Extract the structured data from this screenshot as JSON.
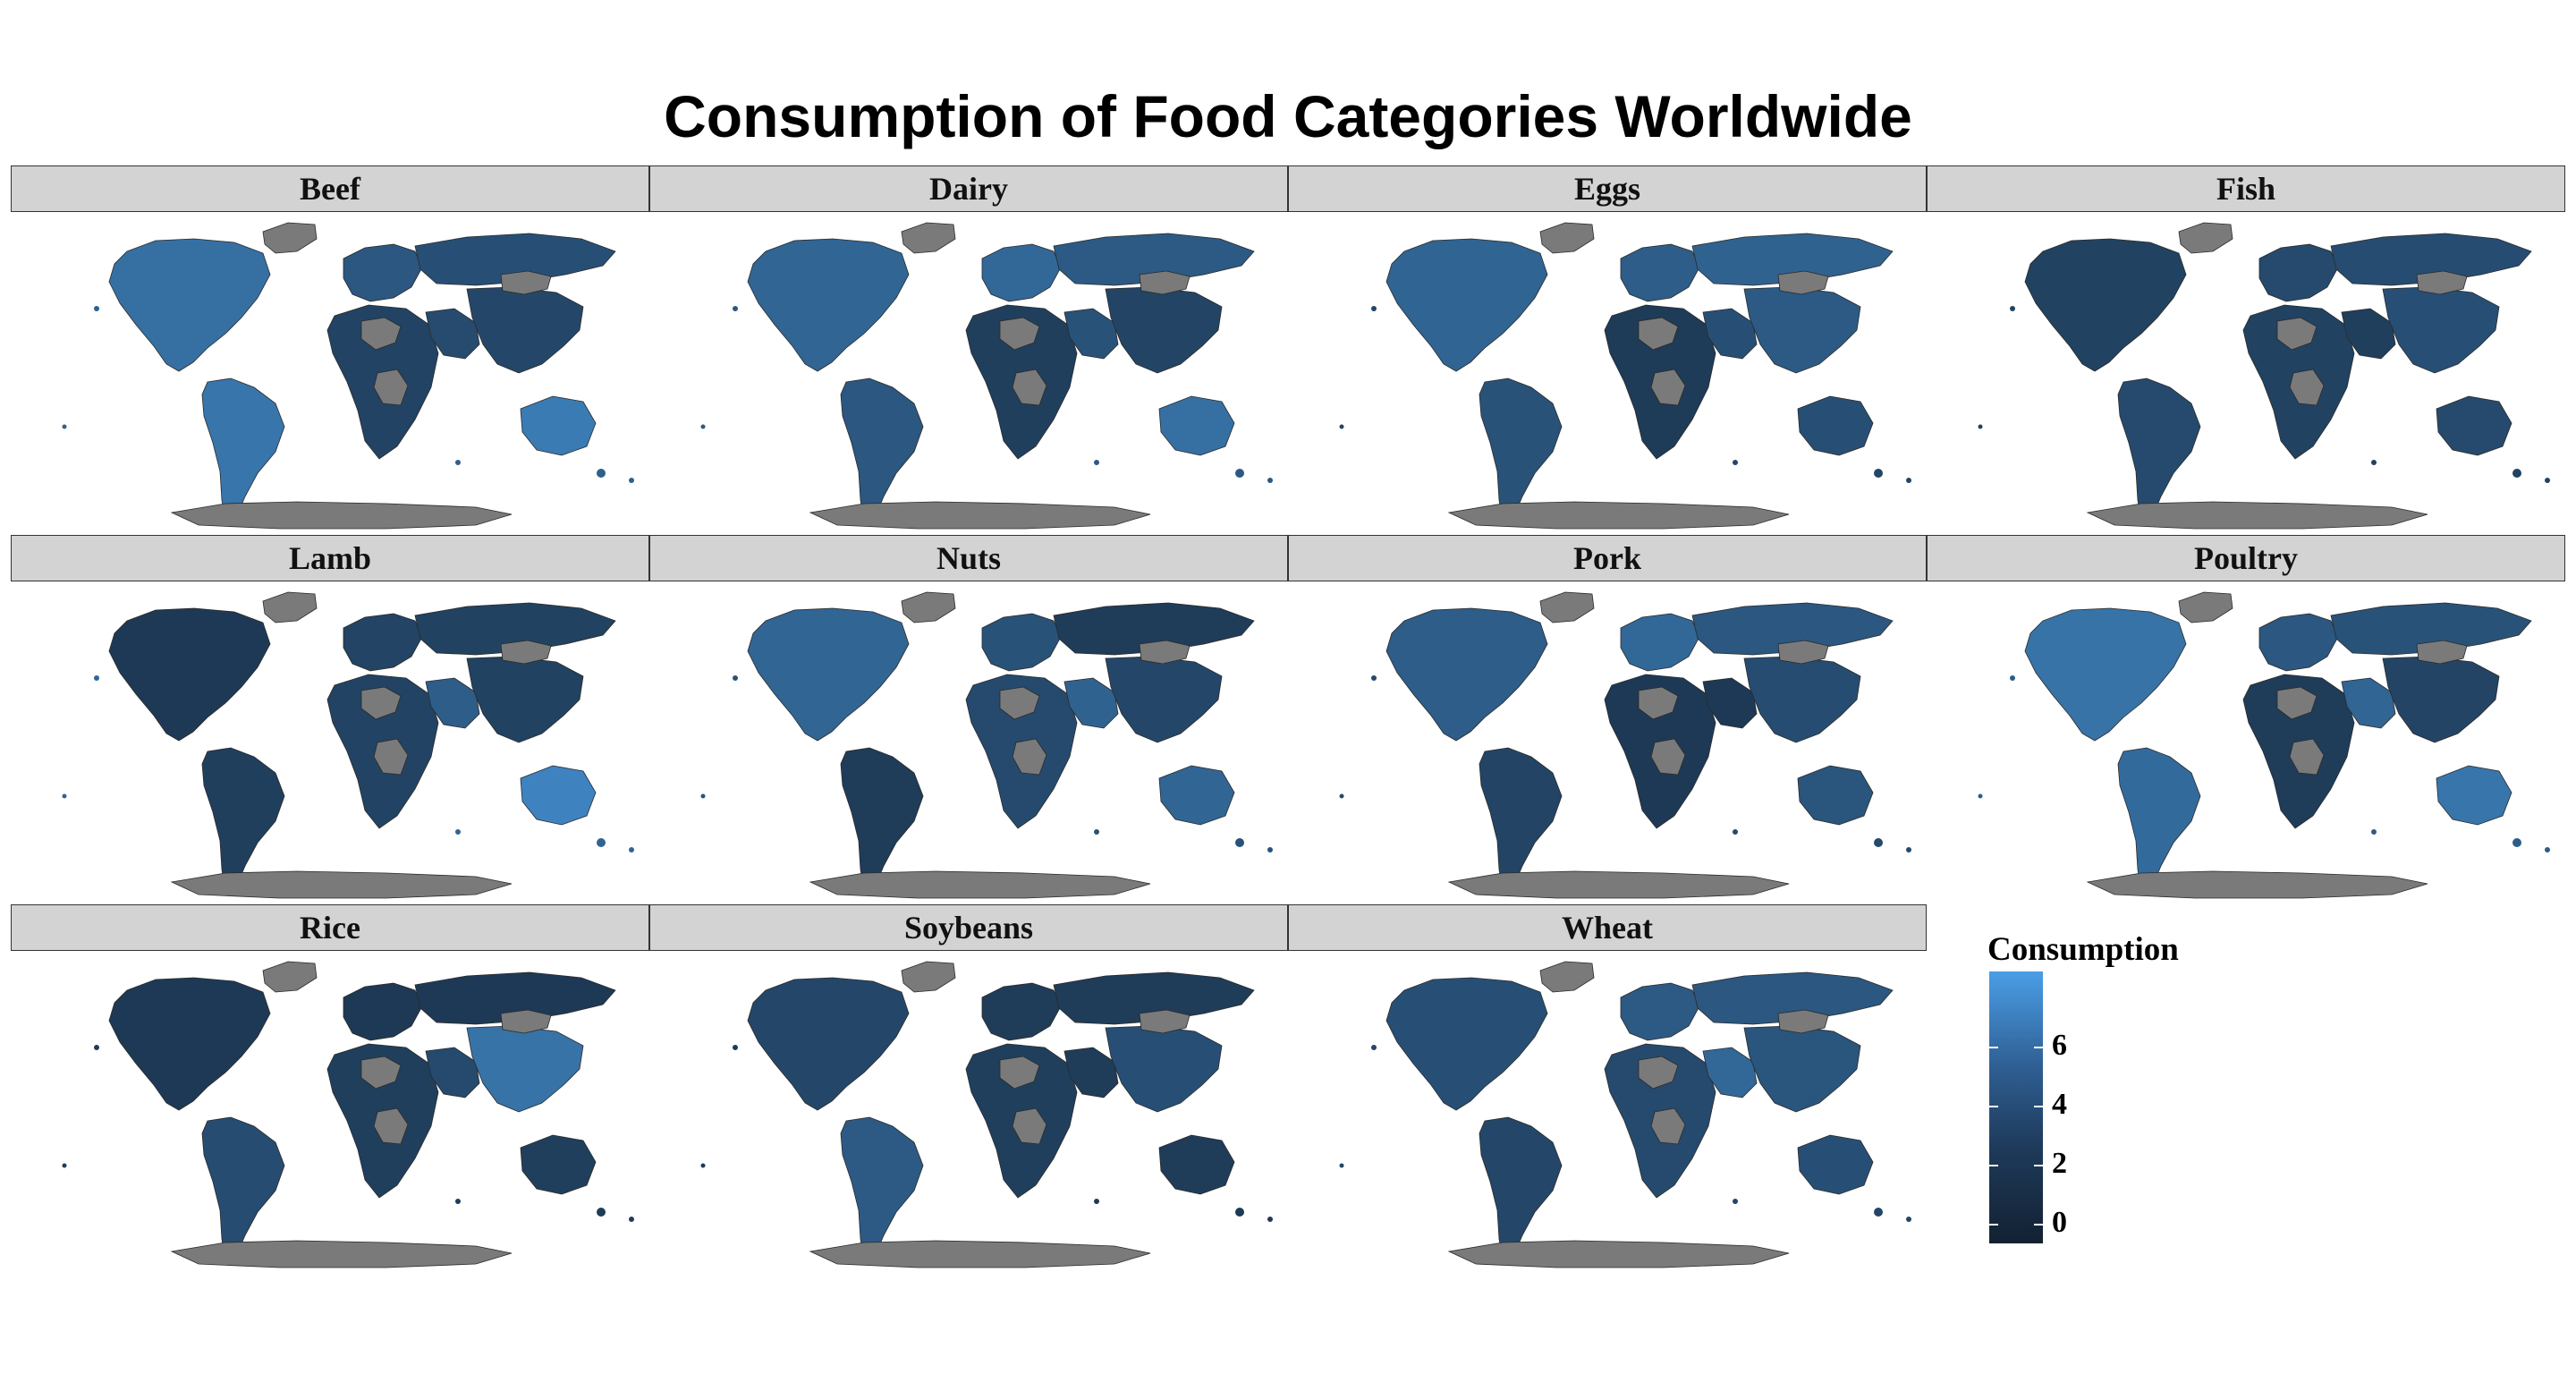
{
  "title": "Consumption of Food Categories Worldwide",
  "colors": {
    "no_data": "#7a7a7a",
    "scale_low": "#132132",
    "scale_high": "#4a9ee6",
    "country_border": "#2a2a2a"
  },
  "panels": [
    {
      "label": "Beef",
      "americas": 4.2,
      "south_america": 4.6,
      "europe": 2.4,
      "russia": 1.8,
      "africa": 0.9,
      "asia": 1.2,
      "oceania": 5.0,
      "middle_east": 1.5
    },
    {
      "label": "Dairy",
      "americas": 3.4,
      "south_america": 2.4,
      "europe": 3.6,
      "russia": 2.6,
      "africa": 0.6,
      "asia": 1.0,
      "oceania": 4.2,
      "middle_east": 2.0
    },
    {
      "label": "Eggs",
      "americas": 3.3,
      "south_america": 2.0,
      "europe": 2.8,
      "russia": 3.2,
      "africa": 0.3,
      "asia": 2.6,
      "oceania": 1.8,
      "middle_east": 1.8
    },
    {
      "label": "Fish",
      "americas": 0.8,
      "south_america": 1.4,
      "europe": 1.4,
      "russia": 1.6,
      "africa": 0.8,
      "asia": 1.8,
      "oceania": 1.4,
      "middle_east": 0.6
    },
    {
      "label": "Lamb",
      "americas": 0.2,
      "south_america": 0.6,
      "europe": 1.0,
      "russia": 0.8,
      "africa": 0.9,
      "asia": 0.8,
      "oceania": 5.6,
      "middle_east": 2.8
    },
    {
      "label": "Nuts",
      "americas": 3.4,
      "south_america": 0.4,
      "europe": 2.0,
      "russia": 0.4,
      "africa": 1.4,
      "asia": 1.2,
      "oceania": 3.4,
      "middle_east": 3.2
    },
    {
      "label": "Pork",
      "americas": 2.8,
      "south_america": 1.0,
      "europe": 3.6,
      "russia": 2.4,
      "africa": 0.2,
      "asia": 1.6,
      "oceania": 2.2,
      "middle_east": 0.2
    },
    {
      "label": "Poultry",
      "americas": 4.4,
      "south_america": 3.8,
      "europe": 2.4,
      "russia": 2.0,
      "africa": 0.4,
      "asia": 1.0,
      "oceania": 4.6,
      "middle_east": 3.4
    },
    {
      "label": "Rice",
      "americas": 0.2,
      "south_america": 1.6,
      "europe": 0.2,
      "russia": 0.2,
      "africa": 0.6,
      "asia": 4.4,
      "oceania": 0.6,
      "middle_east": 1.4
    },
    {
      "label": "Soybeans",
      "americas": 1.2,
      "south_america": 2.6,
      "europe": 0.4,
      "russia": 0.4,
      "africa": 0.6,
      "asia": 1.8,
      "oceania": 0.4,
      "middle_east": 0.4
    },
    {
      "label": "Wheat",
      "americas": 1.8,
      "south_america": 1.2,
      "europe": 2.6,
      "russia": 2.4,
      "africa": 1.4,
      "asia": 2.2,
      "oceania": 1.8,
      "middle_east": 3.6
    }
  ],
  "legend": {
    "title": "Consumption",
    "min": -1.6,
    "max": 7.6,
    "ticks": [
      "6",
      "4",
      "2",
      "0"
    ]
  }
}
